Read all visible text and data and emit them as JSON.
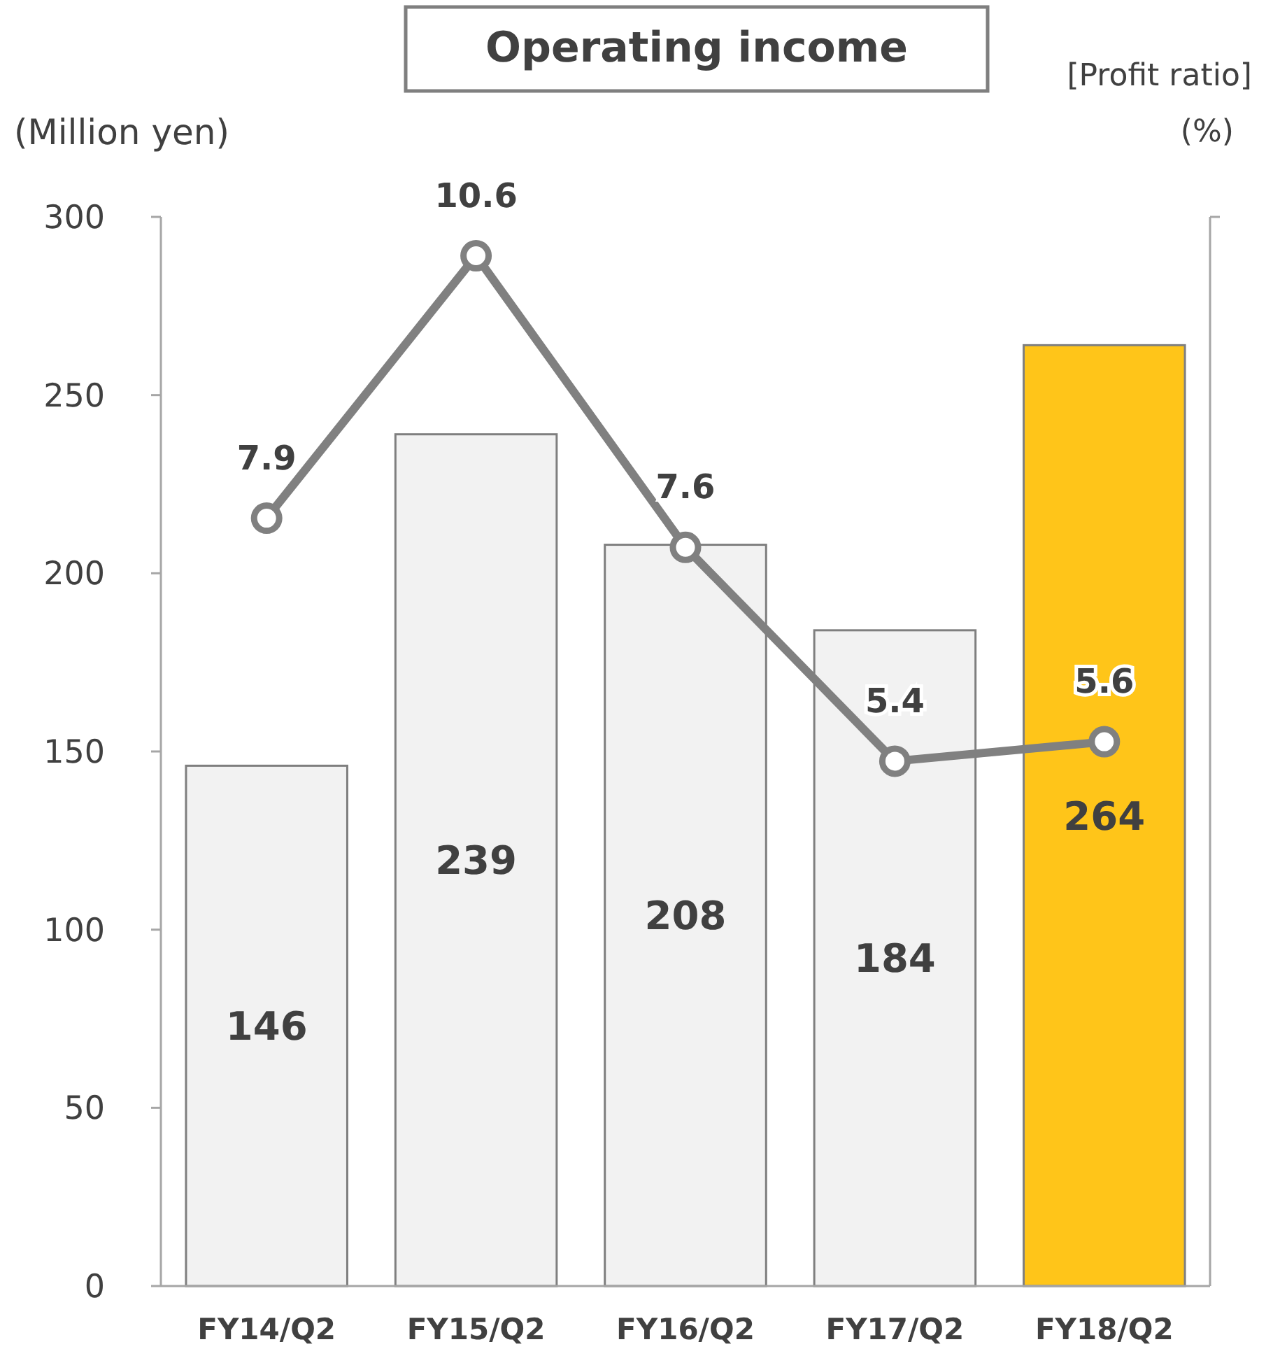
{
  "chart_data": {
    "type": "bar",
    "title": "Operating income",
    "ylabel": "(Million yen)",
    "y2label": "[Profit ratio] (%)",
    "categories": [
      "FY14/Q2",
      "FY15/Q2",
      "FY16/Q2",
      "FY17/Q2",
      "FY18/Q2"
    ],
    "series": [
      {
        "colors": [
          "#f2f2f2",
          "#f2f2f2",
          "#f2f2f2",
          "#f2f2f2",
          "#ffc519"
        ],
        "values": [
          146,
          239,
          208,
          184,
          264
        ]
      },
      {
        "type": "line",
        "axis": "y2",
        "color": "#808080",
        "values": [
          7.9,
          10.6,
          7.6,
          5.4,
          5.6
        ]
      }
    ],
    "ylim": [
      0,
      300
    ],
    "yticks": [
      0,
      50,
      100,
      150,
      200,
      250,
      300
    ],
    "y2lim": [
      0,
      11
    ],
    "data_labels": true,
    "grid": false,
    "marker": "circle",
    "line_style": "solid"
  }
}
